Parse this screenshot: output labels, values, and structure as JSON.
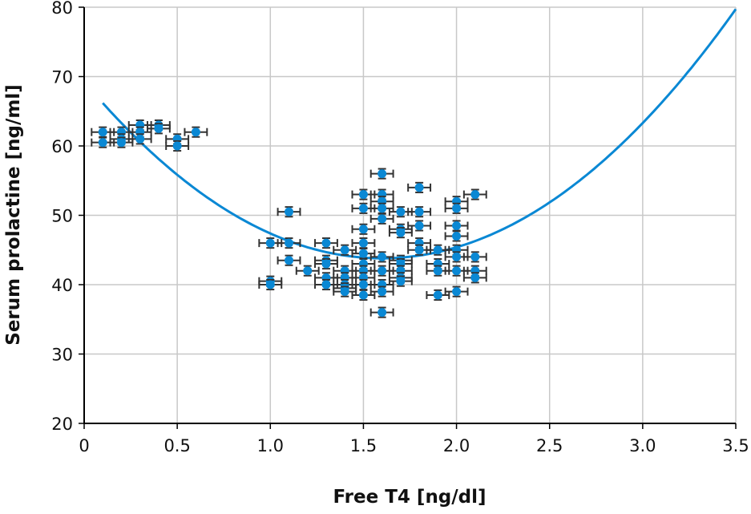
{
  "chart_data": {
    "type": "scatter",
    "title": "",
    "xlabel": "Free T4 [ng/dl]",
    "ylabel": "Serum prolactine [ng/ml]",
    "xlim": [
      0,
      3.5
    ],
    "ylim": [
      20,
      80
    ],
    "xticks": [
      "0",
      "0.5",
      "1.0",
      "1.5",
      "2.0",
      "2.5",
      "3.0",
      "3.5"
    ],
    "xtick_values": [
      0,
      0.5,
      1.0,
      1.5,
      2.0,
      2.5,
      3.0,
      3.5
    ],
    "yticks": [
      "20",
      "30",
      "40",
      "50",
      "60",
      "70",
      "80"
    ],
    "ytick_values": [
      20,
      30,
      40,
      50,
      60,
      70,
      80
    ],
    "grid": true,
    "point_color": "#0a88d4",
    "curve_color": "#0a88d4",
    "errorbar_color": "#333333",
    "x_error": 0.06,
    "y_error": 0.7,
    "fit": {
      "type": "quadratic",
      "form": "a*(x-h)^2+k",
      "a": 9.95,
      "h": 1.6,
      "k": 43.8,
      "x_range": [
        0.1,
        3.5
      ]
    },
    "points": [
      [
        0.1,
        62
      ],
      [
        0.1,
        60.5
      ],
      [
        0.2,
        62
      ],
      [
        0.2,
        61
      ],
      [
        0.2,
        60.5
      ],
      [
        0.3,
        63
      ],
      [
        0.3,
        62
      ],
      [
        0.3,
        61
      ],
      [
        0.4,
        63
      ],
      [
        0.4,
        62.5
      ],
      [
        0.5,
        61
      ],
      [
        0.5,
        60
      ],
      [
        0.6,
        62
      ],
      [
        1.0,
        46
      ],
      [
        1.0,
        40.5
      ],
      [
        1.0,
        40
      ],
      [
        1.1,
        50.5
      ],
      [
        1.1,
        46
      ],
      [
        1.1,
        43.5
      ],
      [
        1.2,
        42
      ],
      [
        1.3,
        46
      ],
      [
        1.3,
        43.5
      ],
      [
        1.3,
        43
      ],
      [
        1.3,
        41
      ],
      [
        1.3,
        40
      ],
      [
        1.4,
        45
      ],
      [
        1.4,
        42
      ],
      [
        1.4,
        41
      ],
      [
        1.4,
        40
      ],
      [
        1.4,
        39.5
      ],
      [
        1.4,
        39
      ],
      [
        1.5,
        53
      ],
      [
        1.5,
        51
      ],
      [
        1.5,
        48
      ],
      [
        1.5,
        46
      ],
      [
        1.5,
        44.5
      ],
      [
        1.5,
        43
      ],
      [
        1.5,
        42
      ],
      [
        1.5,
        41
      ],
      [
        1.5,
        40
      ],
      [
        1.5,
        38.5
      ],
      [
        1.6,
        56
      ],
      [
        1.6,
        53
      ],
      [
        1.6,
        52
      ],
      [
        1.6,
        51
      ],
      [
        1.6,
        49.5
      ],
      [
        1.6,
        44
      ],
      [
        1.6,
        42
      ],
      [
        1.6,
        40
      ],
      [
        1.6,
        39
      ],
      [
        1.6,
        36
      ],
      [
        1.7,
        50.5
      ],
      [
        1.7,
        48
      ],
      [
        1.7,
        47.5
      ],
      [
        1.7,
        43.5
      ],
      [
        1.7,
        43
      ],
      [
        1.7,
        42
      ],
      [
        1.7,
        41
      ],
      [
        1.7,
        40.5
      ],
      [
        1.8,
        54
      ],
      [
        1.8,
        50.5
      ],
      [
        1.8,
        48.5
      ],
      [
        1.8,
        46
      ],
      [
        1.8,
        45
      ],
      [
        1.9,
        45
      ],
      [
        1.9,
        43
      ],
      [
        1.9,
        42
      ],
      [
        1.9,
        38.5
      ],
      [
        2.0,
        52
      ],
      [
        2.0,
        51
      ],
      [
        2.0,
        48.5
      ],
      [
        2.0,
        47
      ],
      [
        2.0,
        45
      ],
      [
        2.0,
        44
      ],
      [
        2.0,
        42
      ],
      [
        2.0,
        39
      ],
      [
        2.1,
        53
      ],
      [
        2.1,
        44
      ],
      [
        2.1,
        42
      ],
      [
        2.1,
        41
      ]
    ]
  }
}
